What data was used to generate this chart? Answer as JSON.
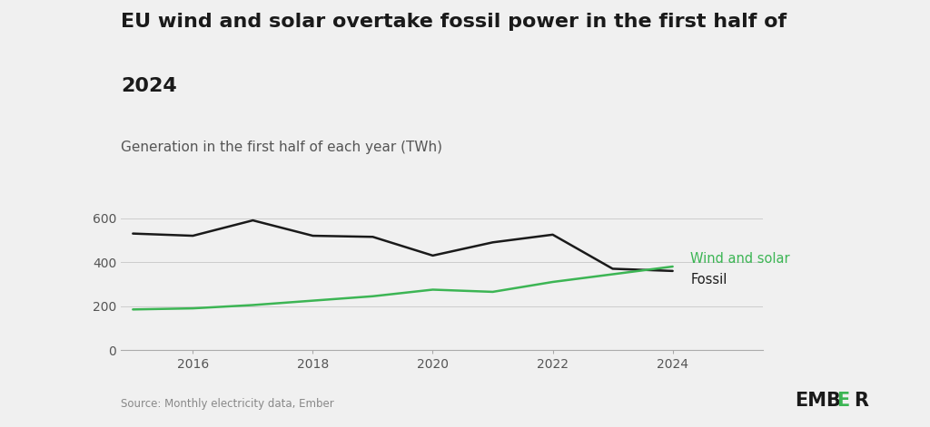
{
  "title_line1": "EU wind and solar overtake fossil power in the first half of",
  "title_line2": "2024",
  "subtitle": "Generation in the first half of each year (TWh)",
  "source": "Source: Monthly electricity data, Ember",
  "years": [
    2015,
    2016,
    2017,
    2018,
    2019,
    2020,
    2021,
    2022,
    2023,
    2024
  ],
  "fossil": [
    530,
    520,
    590,
    520,
    515,
    430,
    490,
    525,
    370,
    360
  ],
  "wind_solar": [
    185,
    190,
    205,
    225,
    245,
    275,
    265,
    310,
    345,
    380
  ],
  "fossil_color": "#1a1a1a",
  "wind_solar_color": "#3cb554",
  "background_color": "#f0f0f0",
  "grid_color": "#cccccc",
  "yticks": [
    0,
    200,
    400,
    600
  ],
  "xticks": [
    2016,
    2018,
    2020,
    2022,
    2024
  ],
  "ylim": [
    0,
    660
  ],
  "xlim": [
    2014.8,
    2025.5
  ],
  "title_fontsize": 16,
  "subtitle_fontsize": 11,
  "tick_fontsize": 10,
  "label_fontsize": 10.5,
  "source_fontsize": 8.5,
  "ember_fontsize": 15
}
